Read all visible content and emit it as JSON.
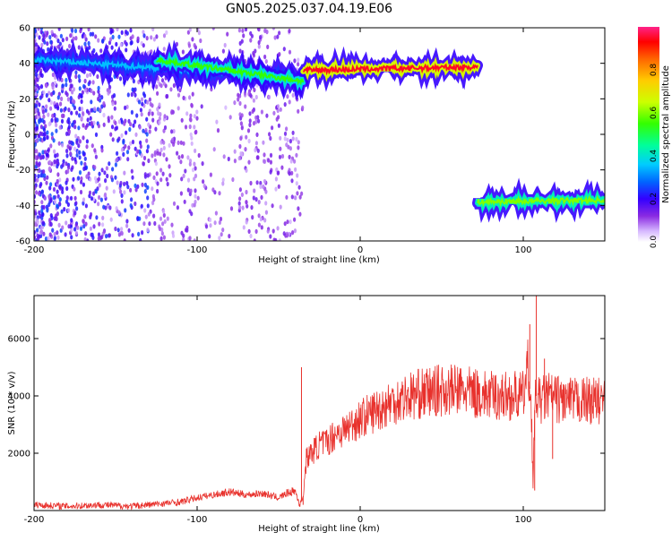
{
  "title": "GN05.2025.037.04.19.E06",
  "chart_data": [
    {
      "type": "heatmap",
      "xlabel": "Height of straight line (km)",
      "ylabel": "Frequency (Hz)",
      "xlim": [
        -200,
        150
      ],
      "ylim": [
        -60,
        60
      ],
      "xticks": [
        -200,
        -100,
        0,
        100
      ],
      "yticks": [
        -60,
        -40,
        -20,
        0,
        20,
        40,
        60
      ],
      "colorbar": {
        "label": "Normalized spectral amplitude",
        "range": [
          0,
          1
        ],
        "ticks": [
          "0.0",
          "0.2",
          "0.4",
          "0.6",
          "0.8"
        ]
      },
      "tracks": [
        {
          "x_start": -200,
          "x_end": -35,
          "freq_start": 42,
          "freq_end": 32,
          "amp": 0.35
        },
        {
          "x_start": -125,
          "x_end": -35,
          "freq_start": 42,
          "freq_end": 30,
          "amp": 0.55
        },
        {
          "x_start": -35,
          "x_end": 72,
          "freq_start": 36,
          "freq_end": 38,
          "amp": 0.95
        },
        {
          "x_start": 72,
          "x_end": 150,
          "freq_start": -38,
          "freq_end": -37,
          "amp": 0.6
        }
      ],
      "noise_region": {
        "x_start": -200,
        "x_end": -35,
        "freq_min": -60,
        "freq_max": 60
      }
    },
    {
      "type": "line",
      "xlabel": "Height of straight line (km)",
      "ylabel": "SNR (10 * v/v)",
      "xlim": [
        -200,
        150
      ],
      "ylim": [
        0,
        7500
      ],
      "xticks": [
        -200,
        -100,
        0,
        100
      ],
      "yticks": [
        2000,
        4000,
        6000
      ],
      "series": [
        {
          "color": "#e8312c",
          "x": [
            -200,
            -180,
            -160,
            -140,
            -130,
            -120,
            -110,
            -100,
            -90,
            -80,
            -70,
            -60,
            -50,
            -45,
            -40,
            -37,
            -35,
            -33,
            -30,
            -25,
            -20,
            -15,
            -10,
            -5,
            0,
            10,
            20,
            30,
            40,
            50,
            60,
            70,
            80,
            90,
            100,
            103,
            105,
            106,
            107,
            108,
            110,
            115,
            120,
            130,
            140,
            150
          ],
          "y": [
            200,
            150,
            200,
            150,
            200,
            250,
            300,
            450,
            550,
            650,
            550,
            600,
            450,
            600,
            700,
            200,
            500,
            1800,
            2000,
            2300,
            2400,
            2700,
            2800,
            3000,
            3200,
            3500,
            3800,
            4000,
            4100,
            4200,
            4200,
            4100,
            4000,
            4000,
            4000,
            5000,
            3500,
            800,
            3500,
            4000,
            3800,
            4000,
            3900,
            3800,
            3850,
            3800
          ]
        }
      ]
    }
  ]
}
